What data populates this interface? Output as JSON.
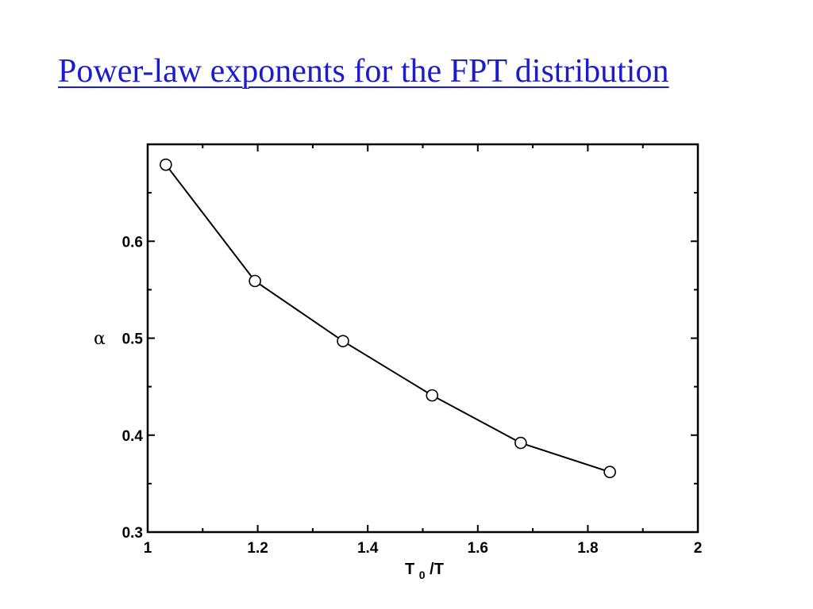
{
  "slide": {
    "title": "Power-law exponents for the FPT distribution"
  },
  "chart_data": {
    "type": "line",
    "title": "",
    "xlabel_main": "T",
    "xlabel_sub": "0",
    "xlabel_tail": "/T",
    "ylabel": "α",
    "xlim": [
      1,
      2
    ],
    "ylim": [
      0.3,
      0.7
    ],
    "x_ticks": [
      1,
      1.2,
      1.4,
      1.6,
      1.8,
      2
    ],
    "x_tick_labels": [
      "1",
      "1.2",
      "1.4",
      "1.6",
      "1.8",
      "2"
    ],
    "y_ticks": [
      0.3,
      0.4,
      0.5,
      0.6
    ],
    "y_tick_labels": [
      "0.3",
      "0.4",
      "0.5",
      "0.6"
    ],
    "x_minor_step": 0.1,
    "y_minor_step": 0.05,
    "grid": false,
    "marker": "open-circle",
    "series": [
      {
        "x": [
          1.033,
          1.195,
          1.355,
          1.517,
          1.678,
          1.84
        ],
        "y": [
          0.679,
          0.559,
          0.497,
          0.441,
          0.392,
          0.362
        ]
      }
    ],
    "colors": {
      "line": "#000000",
      "marker": "#000000"
    }
  }
}
